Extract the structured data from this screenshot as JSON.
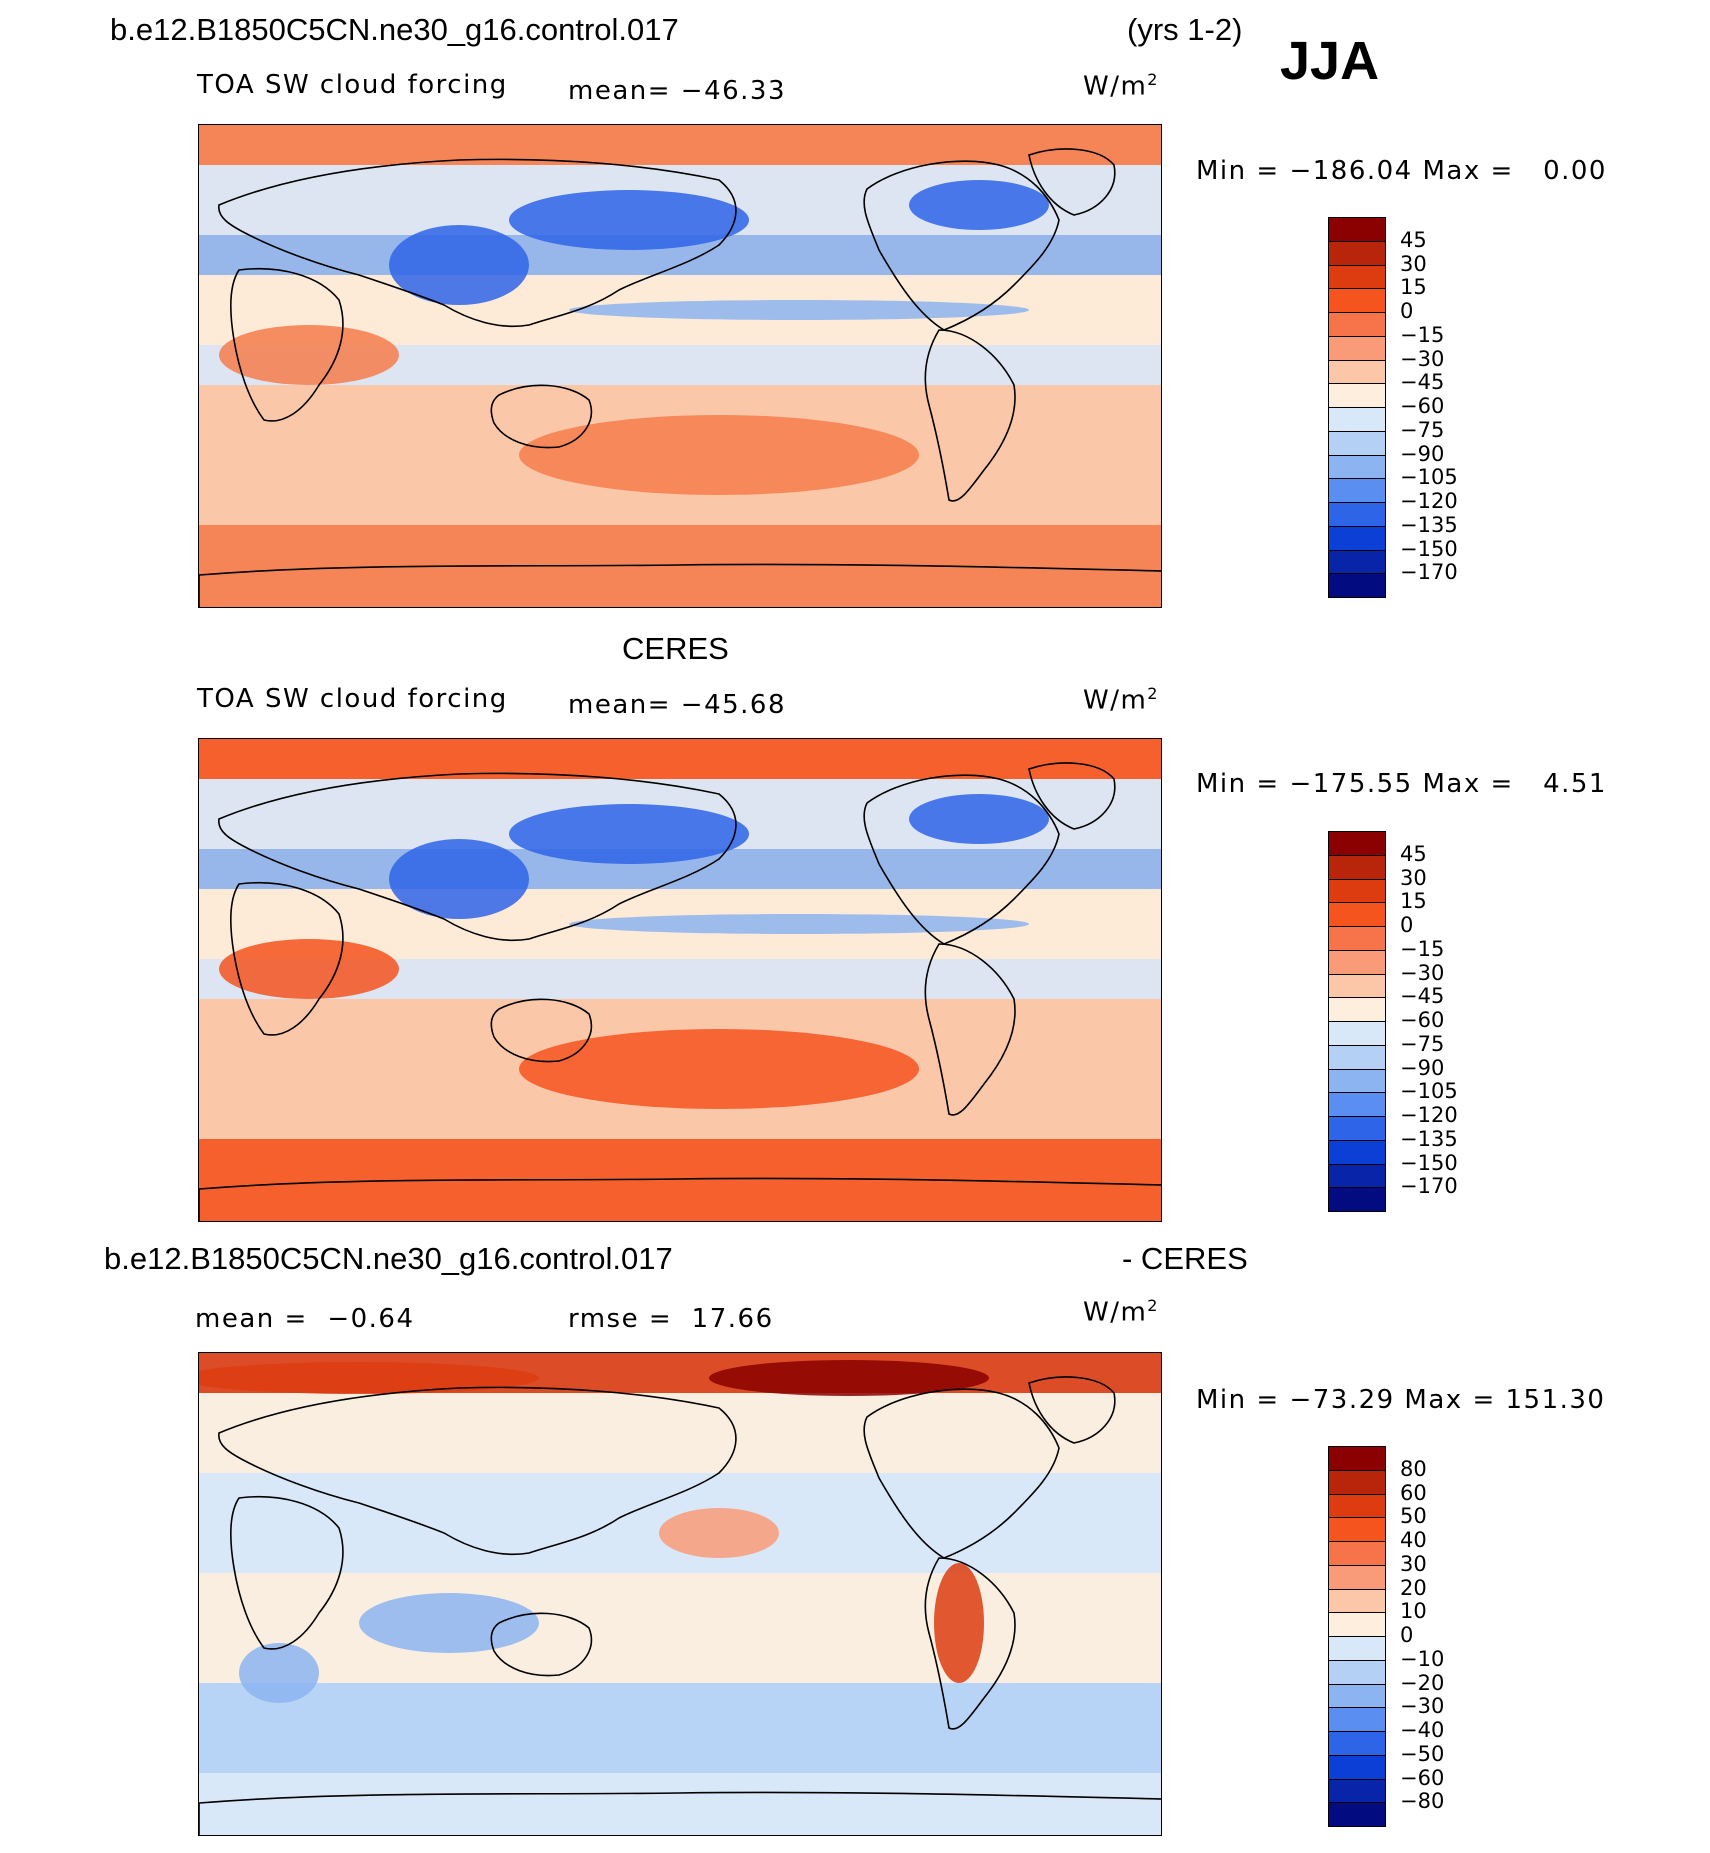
{
  "header": {
    "case_title": "b.e12.B1850C5CN.ne30_g16.control.017",
    "years": "(yrs 1-2)",
    "season": "JJA"
  },
  "panels": [
    {
      "id": "model",
      "title": "",
      "variable": "TOA SW cloud forcing",
      "stat1": "mean= −46.33",
      "stat2": "",
      "units": "W/m",
      "units_sup": "2",
      "minmax": "Min = −186.04 Max =   0.00",
      "colorbar": {
        "labels": [
          "45",
          "30",
          "15",
          "0",
          "−15",
          "−30",
          "−45",
          "−60",
          "−75",
          "−90",
          "−105",
          "−120",
          "−135",
          "−150",
          "−170"
        ],
        "colors": [
          "#8b0000",
          "#b8250b",
          "#dd3c10",
          "#f5541f",
          "#f7744a",
          "#f99b78",
          "#fbc7a8",
          "#fdeedd",
          "#d8e8f8",
          "#b4d0f4",
          "#8cb4f0",
          "#5a8ef0",
          "#2e64e8",
          "#0b3fd6",
          "#0824a8",
          "#020c80"
        ]
      },
      "map_palette": [
        "#f47c4c",
        "#fbc7a8",
        "#fdeedd",
        "#d8e8f8",
        "#8cb4f0",
        "#2e64e8",
        "#0b3fd6"
      ]
    },
    {
      "id": "obs",
      "title": "CERES",
      "variable": "TOA SW cloud forcing",
      "stat1": "mean= −45.68",
      "stat2": "",
      "units": "W/m",
      "units_sup": "2",
      "minmax": "Min = −175.55 Max =   4.51",
      "colorbar": {
        "labels": [
          "45",
          "30",
          "15",
          "0",
          "−15",
          "−30",
          "−45",
          "−60",
          "−75",
          "−90",
          "−105",
          "−120",
          "−135",
          "−150",
          "−170"
        ],
        "colors": [
          "#8b0000",
          "#b8250b",
          "#dd3c10",
          "#f5541f",
          "#f7744a",
          "#f99b78",
          "#fbc7a8",
          "#fdeedd",
          "#d8e8f8",
          "#b4d0f4",
          "#8cb4f0",
          "#5a8ef0",
          "#2e64e8",
          "#0b3fd6",
          "#0824a8",
          "#020c80"
        ]
      },
      "map_palette": [
        "#f5541f",
        "#fbc7a8",
        "#fdeedd",
        "#d8e8f8",
        "#8cb4f0",
        "#2e64e8",
        "#0b3fd6"
      ]
    },
    {
      "id": "diff",
      "title_left": "b.e12.B1850C5CN.ne30_g16.control.017",
      "title_right": "- CERES",
      "variable": "",
      "stat1": "mean =  −0.64",
      "stat2": "rmse =  17.66",
      "units": "W/m",
      "units_sup": "2",
      "minmax": "Min = −73.29 Max = 151.30",
      "colorbar": {
        "labels": [
          "80",
          "60",
          "50",
          "40",
          "30",
          "20",
          "10",
          "0",
          "−10",
          "−20",
          "−30",
          "−40",
          "−50",
          "−60",
          "−80"
        ],
        "colors": [
          "#8b0000",
          "#b8250b",
          "#dd3c10",
          "#f5541f",
          "#f7744a",
          "#f99b78",
          "#fbc7a8",
          "#fdeedd",
          "#d8e8f8",
          "#b4d0f4",
          "#8cb4f0",
          "#5a8ef0",
          "#2e64e8",
          "#0b3fd6",
          "#0824a8",
          "#020c80"
        ]
      },
      "map_palette": [
        "#fdeedd",
        "#d8e8f8",
        "#b4d0f4",
        "#8cb4f0",
        "#f99b78",
        "#dd3c10",
        "#8b0000"
      ]
    }
  ]
}
